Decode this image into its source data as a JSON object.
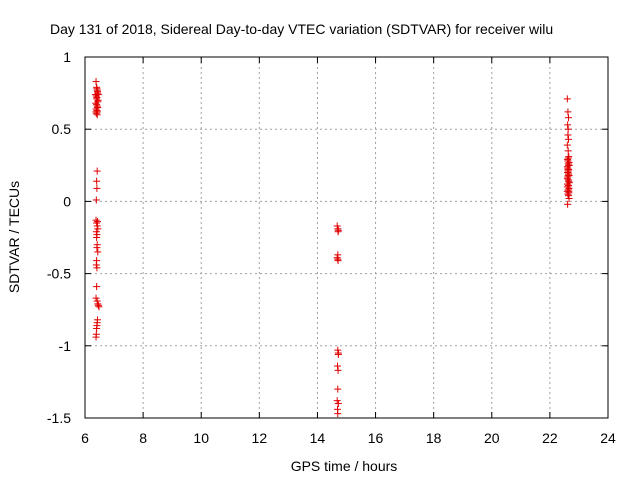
{
  "chart_data": {
    "type": "scatter",
    "title": "Day 131 of 2018, Sidereal Day-to-day VTEC variation (SDTVAR) for receiver wilu",
    "xlabel": "GPS time / hours",
    "ylabel": "SDTVAR / TECUs",
    "xlim": [
      6,
      24
    ],
    "ylim": [
      -1.5,
      1
    ],
    "xticks": [
      6,
      8,
      10,
      12,
      14,
      16,
      18,
      20,
      22,
      24
    ],
    "yticks": [
      -1.5,
      -1,
      -0.5,
      0,
      0.5,
      1
    ],
    "ytick_labels": [
      "-1.5",
      "-1",
      "-0.5",
      "0",
      "0.5",
      "1"
    ],
    "grid": true,
    "marker": "+",
    "series_color": "#e00000",
    "series": [
      {
        "x": [
          6.38,
          6.4,
          6.42,
          6.44,
          6.36,
          6.39,
          6.41,
          6.43,
          6.45,
          6.37,
          6.4,
          6.42,
          6.44,
          6.38,
          6.41,
          6.43,
          6.39,
          6.42,
          6.4,
          6.44,
          6.46,
          6.41,
          6.38,
          6.43,
          6.42,
          6.4,
          6.41,
          6.39,
          6.38,
          6.4,
          6.42,
          6.44,
          6.39,
          6.41,
          6.43,
          6.4,
          6.42,
          6.41,
          6.44,
          6.4,
          6.39,
          6.41,
          6.4,
          6.38,
          6.42,
          6.44,
          6.46,
          6.48,
          6.43,
          6.42,
          6.41,
          6.4,
          6.39,
          6.38,
          14.68,
          14.7,
          14.72,
          14.7,
          14.68,
          14.71,
          14.7,
          14.72,
          14.69,
          14.71,
          14.7,
          14.68,
          14.72,
          14.69,
          14.7,
          14.71,
          14.7,
          14.72,
          22.6,
          22.62,
          22.64,
          22.61,
          22.63,
          22.62,
          22.64,
          22.6,
          22.63,
          22.65,
          22.61,
          22.62,
          22.66,
          22.63,
          22.64,
          22.6,
          22.62,
          22.65,
          22.63,
          22.61,
          22.64,
          22.66,
          22.62,
          22.6,
          22.63,
          22.65,
          22.67,
          22.61,
          22.64,
          22.62,
          22.66,
          22.63,
          22.6,
          22.65,
          22.62,
          22.64,
          22.66,
          22.61,
          22.63,
          22.67,
          22.62,
          22.64,
          22.6,
          22.65,
          22.63,
          22.62,
          22.61
        ],
        "y": [
          0.83,
          0.79,
          0.77,
          0.75,
          0.74,
          0.73,
          0.72,
          0.76,
          0.7,
          0.68,
          0.67,
          0.66,
          0.65,
          0.64,
          0.63,
          0.62,
          0.61,
          0.6,
          0.71,
          0.69,
          0.74,
          0.78,
          0.62,
          0.65,
          0.21,
          0.14,
          0.09,
          0.01,
          -0.13,
          -0.15,
          -0.17,
          -0.19,
          -0.21,
          -0.23,
          -0.14,
          -0.25,
          -0.3,
          -0.32,
          -0.35,
          -0.41,
          -0.44,
          -0.46,
          -0.59,
          -0.67,
          -0.69,
          -0.71,
          -0.72,
          -0.73,
          -0.82,
          -0.84,
          -0.86,
          -0.88,
          -0.92,
          -0.94,
          -0.17,
          -0.19,
          -0.2,
          -0.37,
          -0.39,
          -0.41,
          -1.03,
          -1.05,
          -1.14,
          -1.17,
          -1.3,
          -1.38,
          -1.4,
          -1.44,
          -1.47,
          -0.21,
          -0.4,
          -1.06,
          0.71,
          0.62,
          0.58,
          0.53,
          0.5,
          0.46,
          0.43,
          0.39,
          0.35,
          0.31,
          0.29,
          0.28,
          0.27,
          0.26,
          0.25,
          0.24,
          0.23,
          0.22,
          0.21,
          0.2,
          0.19,
          0.18,
          0.17,
          0.16,
          0.15,
          0.14,
          0.13,
          0.12,
          0.11,
          0.1,
          0.09,
          0.08,
          0.07,
          0.06,
          0.05,
          0.04,
          0.02,
          -0.02,
          0.3,
          0.25,
          0.2,
          0.14,
          0.1,
          0.07,
          0.18,
          0.22,
          0.12
        ]
      }
    ]
  }
}
